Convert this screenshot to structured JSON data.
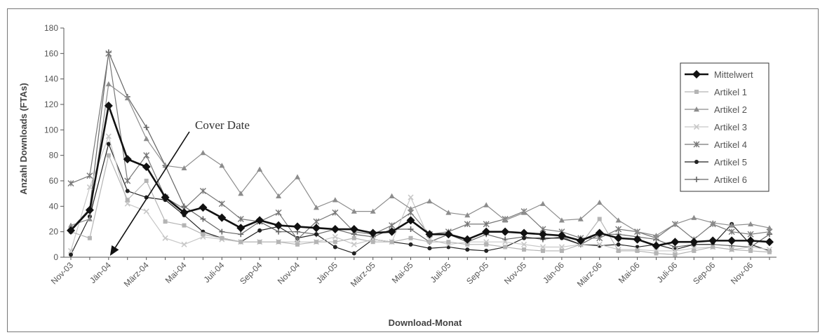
{
  "chart_data": {
    "type": "line",
    "title": "",
    "xlabel": "Download-Monat",
    "ylabel": "Anzahl Downloads (FTAs)",
    "ylim": [
      0,
      180
    ],
    "yticks": [
      0,
      20,
      40,
      60,
      80,
      100,
      120,
      140,
      160,
      180
    ],
    "x_tick_labels": [
      "Nov-03",
      "Jän-04",
      "März-04",
      "Mai-04",
      "Juli-04",
      "Sep-04",
      "Nov-04",
      "Jän-05",
      "März-05",
      "Mai-05",
      "Juli-05",
      "Sep-05",
      "Nov-05",
      "Jän-06",
      "März-06",
      "Mai-06",
      "Juli-06",
      "Sep-06",
      "Nov-06"
    ],
    "x": [
      "Nov-03",
      "Dez-03",
      "Jän-04",
      "Feb-04",
      "März-04",
      "Apr-04",
      "Mai-04",
      "Jun-04",
      "Juli-04",
      "Aug-04",
      "Sep-04",
      "Okt-04",
      "Nov-04",
      "Dez-04",
      "Jän-05",
      "Feb-05",
      "März-05",
      "Apr-05",
      "Mai-05",
      "Jun-05",
      "Juli-05",
      "Aug-05",
      "Sep-05",
      "Okt-05",
      "Nov-05",
      "Dez-05",
      "Jän-06",
      "Feb-06",
      "März-06",
      "Apr-06",
      "Mai-06",
      "Jun-06",
      "Juli-06",
      "Aug-06",
      "Sep-06",
      "Okt-06",
      "Nov-06",
      "Dez-06"
    ],
    "grid": false,
    "legend_position": "right",
    "annotations": [
      {
        "text": "Cover Date",
        "points_to": "Jän-04",
        "value": 0
      }
    ],
    "series": [
      {
        "name": "Mittelwert",
        "marker": "diamond",
        "color": "#111111",
        "width": 2.6,
        "values": [
          21,
          37,
          119,
          77,
          71,
          47,
          35,
          39,
          31,
          23,
          29,
          25,
          24,
          23,
          22,
          22,
          19,
          20,
          29,
          18,
          18,
          14,
          20,
          20,
          19,
          18,
          17,
          13,
          19,
          15,
          14,
          9,
          12,
          12,
          13,
          13,
          13,
          12
        ]
      },
      {
        "name": "Artikel 1",
        "marker": "square",
        "color": "#b4b4b4",
        "width": 1.2,
        "values": [
          20,
          15,
          80,
          45,
          60,
          28,
          25,
          18,
          15,
          12,
          12,
          12,
          10,
          12,
          12,
          15,
          12,
          12,
          15,
          12,
          12,
          10,
          10,
          8,
          6,
          5,
          5,
          10,
          30,
          5,
          5,
          3,
          2,
          5,
          8,
          6,
          5,
          4
        ]
      },
      {
        "name": "Artikel 2",
        "marker": "triangle",
        "color": "#8c8c8c",
        "width": 1.2,
        "values": [
          25,
          30,
          136,
          125,
          93,
          72,
          70,
          82,
          72,
          50,
          69,
          48,
          63,
          39,
          45,
          36,
          36,
          48,
          38,
          44,
          35,
          33,
          41,
          29,
          35,
          42,
          29,
          30,
          43,
          29,
          20,
          17,
          26,
          31,
          27,
          25,
          26,
          23
        ]
      },
      {
        "name": "Artikel 3",
        "marker": "x",
        "color": "#c8c8c8",
        "width": 1.2,
        "values": [
          5,
          55,
          95,
          42,
          36,
          15,
          10,
          16,
          14,
          12,
          12,
          12,
          12,
          12,
          16,
          10,
          14,
          12,
          47,
          14,
          10,
          12,
          12,
          12,
          10,
          8,
          8,
          10,
          10,
          6,
          6,
          5,
          5,
          7,
          8,
          6,
          8,
          6
        ]
      },
      {
        "name": "Artikel 4",
        "marker": "asterisk",
        "color": "#777777",
        "width": 1.2,
        "values": [
          58,
          64,
          160,
          60,
          80,
          47,
          38,
          52,
          42,
          30,
          28,
          35,
          14,
          28,
          35,
          20,
          18,
          25,
          35,
          18,
          20,
          26,
          26,
          30,
          36,
          22,
          20,
          15,
          15,
          22,
          20,
          15,
          26,
          14,
          26,
          20,
          18,
          20
        ]
      },
      {
        "name": "Artikel 5",
        "marker": "circle",
        "color": "#222222",
        "width": 1.2,
        "values": [
          2,
          32,
          89,
          52,
          47,
          45,
          33,
          20,
          15,
          12,
          21,
          24,
          15,
          18,
          8,
          3,
          14,
          12,
          10,
          7,
          8,
          6,
          5,
          8,
          15,
          15,
          15,
          10,
          9,
          10,
          8,
          10,
          6,
          10,
          10,
          26,
          10,
          5
        ]
      },
      {
        "name": "Artikel 6",
        "marker": "plus",
        "color": "#666666",
        "width": 1.2,
        "values": [
          22,
          38,
          161,
          126,
          102,
          72,
          40,
          30,
          20,
          18,
          28,
          20,
          20,
          18,
          22,
          18,
          16,
          22,
          22,
          12,
          18,
          12,
          18,
          14,
          16,
          14,
          16,
          10,
          18,
          18,
          16,
          14,
          8,
          10,
          10,
          9,
          8,
          18
        ]
      }
    ]
  }
}
